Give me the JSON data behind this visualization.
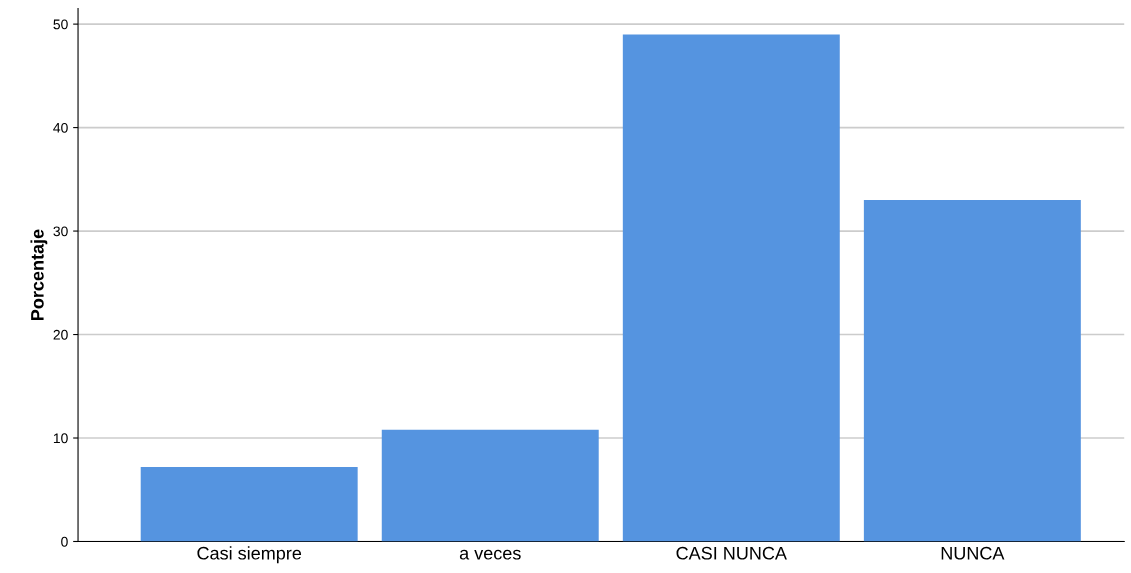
{
  "chart_data": {
    "type": "bar",
    "ylabel": "Porcentaje",
    "categories": [
      "Casi siempre",
      "a veces",
      "CASI NUNCA",
      "NUNCA"
    ],
    "values": [
      7.2,
      10.8,
      49.0,
      33.0
    ],
    "color": "#5594e0",
    "ylim": [
      0,
      51.5
    ],
    "yticks": [
      0,
      10,
      20,
      30,
      40,
      50
    ],
    "grid": "y"
  }
}
